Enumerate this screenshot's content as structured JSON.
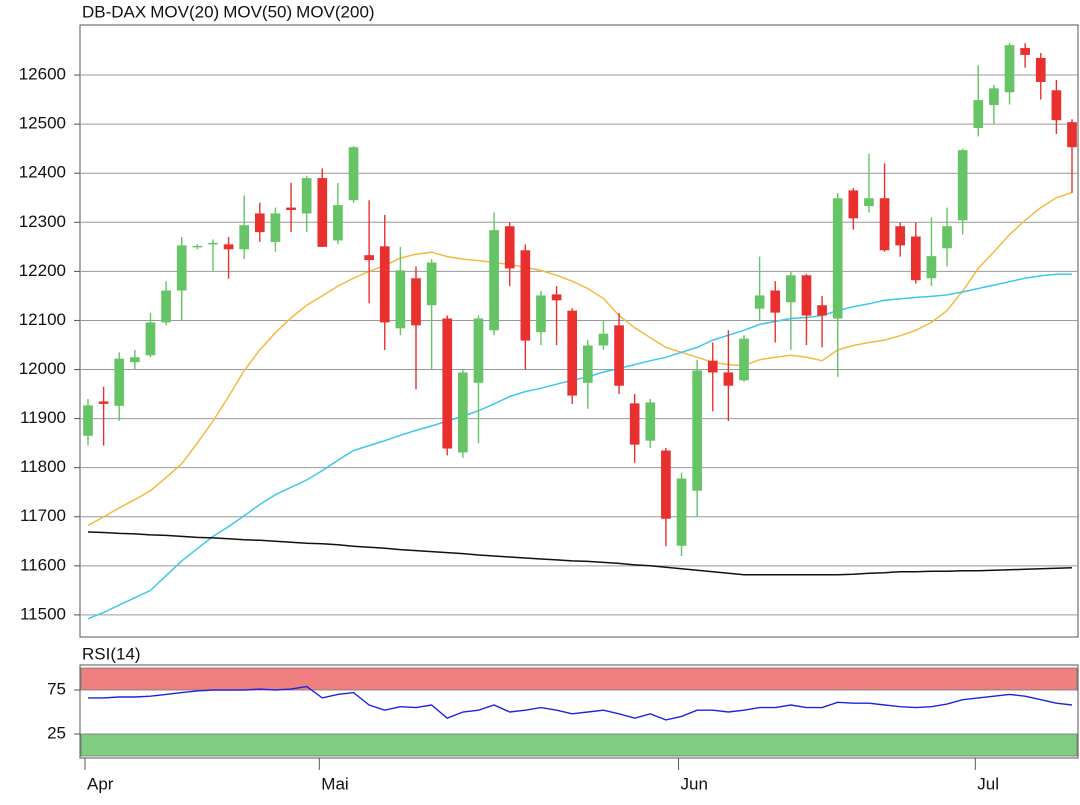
{
  "chart_data": [
    {
      "type": "candlestick",
      "name": "DB-DAX",
      "legend_color": "#e8302f",
      "color_up": "#66c466",
      "color_down": "#e8302f",
      "categories": [
        "Apr",
        null,
        null,
        null,
        null,
        null,
        null,
        null,
        null,
        null,
        null,
        null,
        null,
        null,
        null,
        "Mai",
        null,
        null,
        null,
        null,
        null,
        null,
        null,
        null,
        null,
        null,
        null,
        null,
        null,
        null,
        null,
        null,
        null,
        null,
        null,
        null,
        null,
        null,
        "Jun",
        null,
        null,
        null,
        null,
        null,
        null,
        null,
        null,
        null,
        null,
        null,
        null,
        null,
        null,
        null,
        null,
        null,
        null,
        "Jul",
        null,
        null,
        null,
        null,
        null,
        null
      ],
      "open": [
        11865,
        11935,
        11926,
        12015,
        12029,
        12096,
        12161,
        12250,
        12255,
        12255,
        12245,
        12318,
        12260,
        12330,
        12318,
        12390,
        12263,
        12345,
        12233,
        12251,
        12084,
        12186,
        12131,
        12104,
        11831,
        11973,
        12080,
        12292,
        12243,
        12076,
        12153,
        12120,
        11973,
        12049,
        12090,
        11931,
        11855,
        11835,
        11641,
        11753,
        12018,
        11994,
        11978,
        12124,
        12161,
        12137,
        12192,
        12131,
        12104,
        12365,
        12333,
        12349,
        12292,
        12271,
        12186,
        12247,
        12304,
        12492,
        12539,
        12565,
        12655,
        12635,
        12569,
        12504
      ],
      "high": [
        11940,
        11965,
        12035,
        12040,
        12115,
        12180,
        12270,
        12255,
        12265,
        12270,
        12355,
        12340,
        12330,
        12380,
        12395,
        12410,
        12380,
        12455,
        12345,
        12315,
        12250,
        12210,
        12225,
        12110,
        12000,
        12110,
        12320,
        12300,
        12255,
        12160,
        12170,
        12125,
        12060,
        12100,
        12115,
        11950,
        11940,
        11840,
        11790,
        12020,
        12055,
        12080,
        12070,
        12230,
        12180,
        12200,
        12195,
        12150,
        12360,
        12370,
        12440,
        12420,
        12300,
        12300,
        12310,
        12330,
        12450,
        12620,
        12580,
        12665,
        12665,
        12645,
        12590,
        12510
      ],
      "low": [
        11845,
        11845,
        11895,
        12000,
        12025,
        12090,
        12100,
        12245,
        12200,
        12185,
        12225,
        12260,
        12240,
        12280,
        12280,
        12250,
        12255,
        12340,
        12135,
        12040,
        12070,
        11960,
        12000,
        11825,
        11820,
        11850,
        12070,
        12170,
        12000,
        12050,
        12050,
        11930,
        11920,
        12040,
        11950,
        11810,
        11840,
        11640,
        11620,
        11700,
        11915,
        11895,
        11975,
        12100,
        12055,
        12040,
        12050,
        12045,
        11985,
        12285,
        12320,
        12240,
        12230,
        12175,
        12170,
        12210,
        12275,
        12475,
        12500,
        12540,
        12615,
        12550,
        12480,
        12360
      ],
      "close": [
        11927,
        11930,
        12022,
        12025,
        12096,
        12161,
        12253,
        12252,
        12258,
        12245,
        12294,
        12280,
        12318,
        12325,
        12390,
        12250,
        12335,
        12453,
        12223,
        12096,
        12202,
        12090,
        12218,
        11839,
        11994,
        12104,
        12284,
        12206,
        12059,
        12151,
        12141,
        11947,
        12049,
        12073,
        11967,
        11847,
        11933,
        11696,
        11778,
        11998,
        11994,
        11967,
        12063,
        12151,
        12116,
        12192,
        12110,
        12110,
        12349,
        12308,
        12349,
        12243,
        12253,
        12182,
        12231,
        12292,
        12447,
        12549,
        12573,
        12661,
        12641,
        12586,
        12508,
        12453
      ],
      "series": [
        {
          "name": "MOV(20)",
          "color": "#f5b942",
          "values": [
            11682,
            11700,
            11718,
            11735,
            11753,
            11780,
            11808,
            11850,
            11895,
            11945,
            11998,
            12040,
            12075,
            12105,
            12131,
            12150,
            12170,
            12186,
            12200,
            12212,
            12227,
            12235,
            12239,
            12230,
            12225,
            12222,
            12218,
            12214,
            12208,
            12202,
            12192,
            12180,
            12165,
            12145,
            12110,
            12085,
            12065,
            12045,
            12035,
            12025,
            12015,
            12010,
            12008,
            12020,
            12025,
            12029,
            12025,
            12018,
            12040,
            12049,
            12055,
            12060,
            12069,
            12080,
            12096,
            12120,
            12160,
            12206,
            12240,
            12275,
            12304,
            12330,
            12350,
            12361
          ]
        },
        {
          "name": "MOV(50)",
          "color": "#3cc8ee",
          "values": [
            11492,
            11505,
            11520,
            11535,
            11550,
            11580,
            11610,
            11635,
            11660,
            11680,
            11702,
            11725,
            11745,
            11760,
            11775,
            11794,
            11815,
            11835,
            11845,
            11855,
            11866,
            11876,
            11885,
            11895,
            11905,
            11916,
            11930,
            11945,
            11955,
            11962,
            11970,
            11978,
            11985,
            11995,
            12002,
            12010,
            12018,
            12025,
            12035,
            12045,
            12060,
            12070,
            12080,
            12092,
            12098,
            12104,
            12106,
            12110,
            12120,
            12128,
            12134,
            12141,
            12144,
            12147,
            12149,
            12152,
            12158,
            12165,
            12172,
            12179,
            12186,
            12191,
            12194,
            12194
          ]
        },
        {
          "name": "MOV(200)",
          "color": "#111111",
          "values": [
            11669,
            11668,
            11666,
            11665,
            11663,
            11662,
            11660,
            11658,
            11657,
            11655,
            11653,
            11652,
            11650,
            11648,
            11646,
            11645,
            11643,
            11640,
            11638,
            11636,
            11633,
            11631,
            11629,
            11627,
            11625,
            11622,
            11620,
            11618,
            11616,
            11614,
            11612,
            11610,
            11609,
            11607,
            11605,
            11602,
            11600,
            11597,
            11594,
            11591,
            11588,
            11585,
            11582,
            11582,
            11582,
            11582,
            11582,
            11582,
            11582,
            11583,
            11585,
            11586,
            11588,
            11588,
            11589,
            11589,
            11590,
            11590,
            11591,
            11592,
            11593,
            11594,
            11595,
            11596
          ]
        }
      ],
      "ylim": [
        11455,
        12702
      ],
      "yticks": [
        11500,
        11600,
        11700,
        11800,
        11900,
        12000,
        12100,
        12200,
        12300,
        12400,
        12500,
        12600
      ],
      "grid": true
    },
    {
      "type": "line",
      "name": "RSI(14)",
      "color": "#2222dd",
      "values": [
        66,
        66,
        67,
        67,
        68,
        70,
        72,
        74,
        75,
        75,
        75,
        76,
        75,
        76,
        79,
        66,
        70,
        72,
        58,
        52,
        56,
        55,
        58,
        43,
        50,
        52,
        58,
        50,
        52,
        55,
        52,
        48,
        50,
        52,
        48,
        43,
        48,
        41,
        45,
        52,
        52,
        50,
        52,
        55,
        55,
        58,
        55,
        55,
        61,
        60,
        60,
        58,
        56,
        55,
        56,
        59,
        64,
        66,
        68,
        70,
        68,
        64,
        60,
        58
      ],
      "ylim": [
        0,
        100
      ],
      "yticks": [
        25,
        75
      ],
      "bands": [
        {
          "from": 75,
          "to": 100,
          "color": "#f08080"
        },
        {
          "from": 0,
          "to": 25,
          "color": "#80cc80"
        }
      ]
    }
  ]
}
